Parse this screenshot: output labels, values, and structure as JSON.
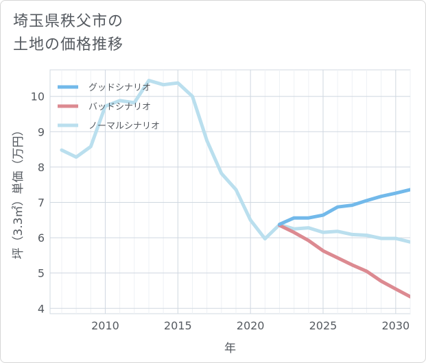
{
  "title_lines": [
    "埼玉県秩父市の",
    "土地の価格推移"
  ],
  "chart_data": {
    "type": "line",
    "xlabel": "年",
    "ylabel": "坪（3.3㎡）単価（万円）",
    "xlim": [
      2006.2,
      2031
    ],
    "ylim": [
      3.85,
      10.75
    ],
    "x_ticks": [
      2010,
      2015,
      2020,
      2025,
      2030
    ],
    "y_ticks": [
      4,
      5,
      6,
      7,
      8,
      9,
      10
    ],
    "grid": true,
    "legend_position": "top-left",
    "series": [
      {
        "name": "グッドシナリオ",
        "color": "#72b9ea",
        "x": [
          2022,
          2023,
          2024,
          2025,
          2026,
          2027,
          2028,
          2029,
          2030,
          2031
        ],
        "values": [
          6.38,
          6.56,
          6.56,
          6.64,
          6.87,
          6.92,
          7.05,
          7.17,
          7.26,
          7.36
        ]
      },
      {
        "name": "バッドシナリオ",
        "color": "#dc8a91",
        "x": [
          2022,
          2023,
          2024,
          2025,
          2026,
          2027,
          2028,
          2029,
          2030,
          2031
        ],
        "values": [
          6.35,
          6.15,
          5.92,
          5.63,
          5.43,
          5.23,
          5.05,
          4.77,
          4.55,
          4.33
        ]
      },
      {
        "name": "ノーマルシナリオ",
        "color": "#badfee",
        "x": [
          2007,
          2008,
          2009,
          2010,
          2011,
          2012,
          2013,
          2014,
          2015,
          2016,
          2017,
          2018,
          2019,
          2020,
          2021,
          2022,
          2023,
          2024,
          2025,
          2026,
          2027,
          2028,
          2029,
          2030,
          2031
        ],
        "values": [
          8.48,
          8.28,
          8.58,
          9.72,
          9.88,
          9.82,
          10.45,
          10.33,
          10.38,
          10.0,
          8.75,
          7.82,
          7.36,
          6.5,
          5.97,
          6.37,
          6.25,
          6.28,
          6.15,
          6.18,
          6.09,
          6.07,
          5.98,
          5.98,
          5.88
        ]
      }
    ]
  }
}
